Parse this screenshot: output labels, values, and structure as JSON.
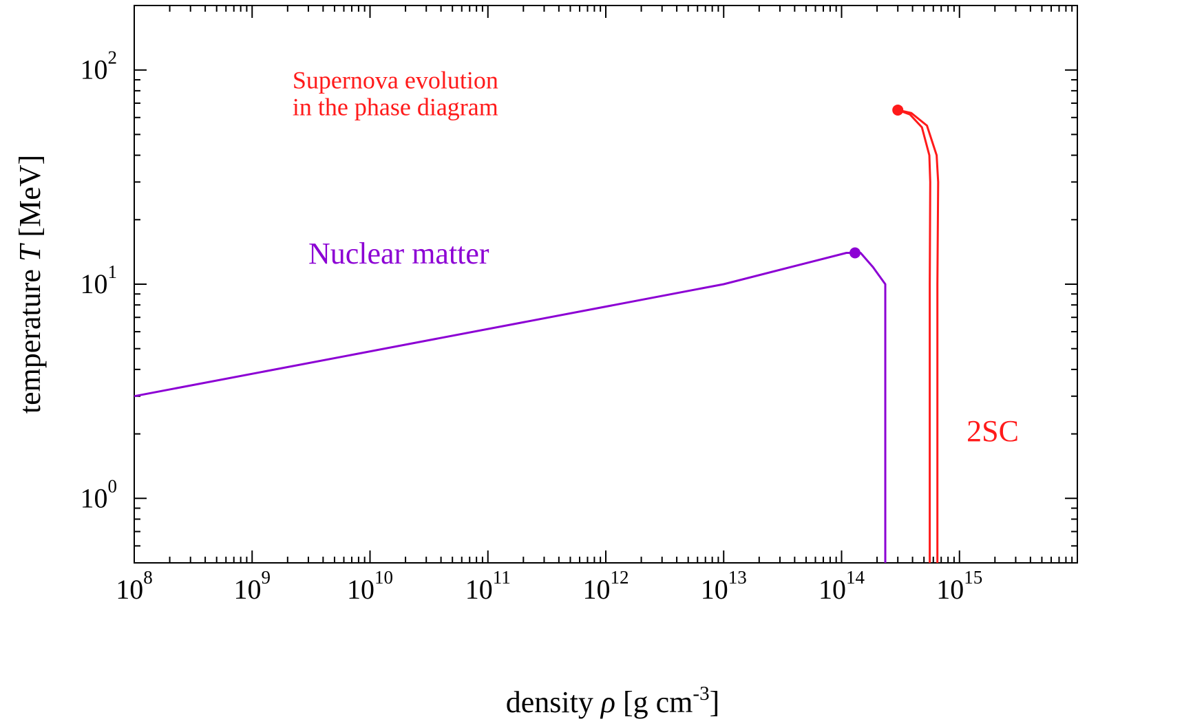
{
  "chart_data": {
    "type": "line",
    "xlabel": {
      "prefix": "density ",
      "symbol": "ρ",
      "suffix": " [g cm",
      "exp": "-3",
      "close": "]"
    },
    "ylabel": {
      "prefix": "temperature ",
      "symbol": "T",
      "suffix": " [MeV]"
    },
    "x_scale": "log",
    "y_scale": "log",
    "xlim": [
      100000000.0,
      1e+16
    ],
    "ylim": [
      0.5,
      200
    ],
    "x_ticks": [
      {
        "value": 100000000.0,
        "base": "10",
        "exp": "8"
      },
      {
        "value": 1000000000.0,
        "base": "10",
        "exp": "9"
      },
      {
        "value": 10000000000.0,
        "base": "10",
        "exp": "10"
      },
      {
        "value": 100000000000.0,
        "base": "10",
        "exp": "11"
      },
      {
        "value": 1000000000000.0,
        "base": "10",
        "exp": "12"
      },
      {
        "value": 10000000000000.0,
        "base": "10",
        "exp": "13"
      },
      {
        "value": 100000000000000.0,
        "base": "10",
        "exp": "14"
      },
      {
        "value": 1000000000000000.0,
        "base": "10",
        "exp": "15"
      }
    ],
    "y_ticks": [
      {
        "value": 1,
        "base": "10",
        "exp": "0"
      },
      {
        "value": 10,
        "base": "10",
        "exp": "1"
      },
      {
        "value": 100,
        "base": "10",
        "exp": "2"
      }
    ],
    "grid": false,
    "series": [
      {
        "color": "#8c00d4",
        "x": [
          100000000.0,
          10000000000000.0,
          110000000000000.0,
          145000000000000.0,
          185000000000000.0,
          235000000000000.0,
          235000000000000.0
        ],
        "y": [
          3.0,
          10.0,
          14.0,
          14.0,
          12.0,
          10.0,
          0.5
        ],
        "marker": {
          "x": 130000000000000.0,
          "y": 14.0
        }
      },
      {
        "color": "#ff1a1a",
        "x": [
          300000000000000.0,
          380000000000000.0,
          480000000000000.0,
          555000000000000.0,
          565000000000000.0,
          560000000000000.0,
          560000000000000.0
        ],
        "y": [
          65.0,
          62.0,
          54.0,
          40.0,
          30.0,
          10.0,
          0.5
        ]
      },
      {
        "color": "#ff1a1a",
        "x": [
          300000000000000.0,
          390000000000000.0,
          530000000000000.0,
          640000000000000.0,
          660000000000000.0,
          650000000000000.0,
          650000000000000.0
        ],
        "y": [
          65.0,
          63.0,
          55.0,
          40.0,
          30.0,
          10.0,
          0.5
        ],
        "marker": {
          "x": 300000000000000.0,
          "y": 65.0
        }
      }
    ],
    "annotations": [
      {
        "text": "Supernova evolution",
        "x": 2200000000.0,
        "y": 82,
        "color": "#ff1a1a",
        "size": "medium"
      },
      {
        "text": "in the phase diagram",
        "x": 2200000000.0,
        "y": 61.5,
        "color": "#ff1a1a",
        "size": "medium"
      },
      {
        "text": "Nuclear matter",
        "x": 3000000000.0,
        "y": 12.5,
        "color": "#8c00d4",
        "size": "large"
      },
      {
        "text": "2SC",
        "x": 1150000000000000.0,
        "y": 1.85,
        "color": "#ff1a1a",
        "size": "large"
      }
    ]
  }
}
